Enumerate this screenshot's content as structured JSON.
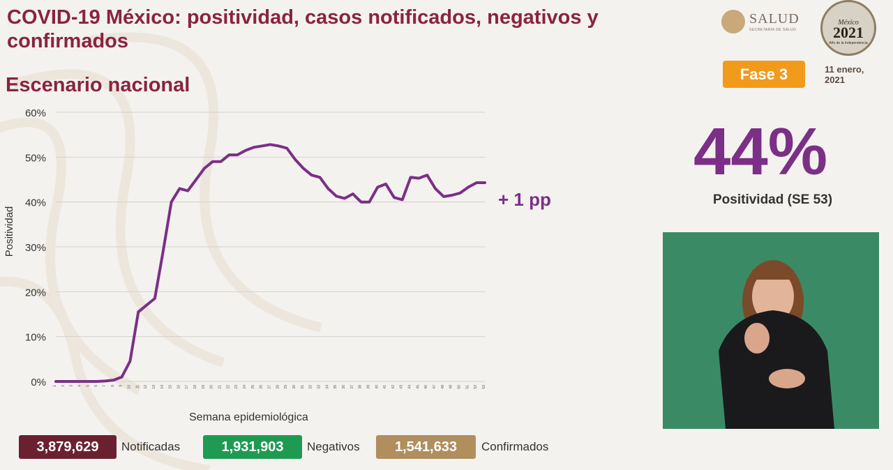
{
  "header": {
    "title": "COVID-19 México: positividad, casos notificados, negativos y confirmados",
    "subtitle": "Escenario nacional"
  },
  "logos": {
    "salud_text": "SALUD",
    "salud_sub": "SECRETARÍA DE SALUD",
    "seal_mexico": "México",
    "seal_year": "2021",
    "seal_sub": "Año de la Independencia"
  },
  "status": {
    "fase": "Fase 3",
    "date_line1": "11 enero,",
    "date_line2": "2021"
  },
  "kpi": {
    "value": "44%",
    "label": "Positividad (SE 53)",
    "change": "+ 1 pp"
  },
  "chart_data": {
    "type": "line",
    "xlabel": "Semana epidemiológica",
    "ylabel": "Positividad",
    "y_ticks": [
      "0%",
      "10%",
      "20%",
      "30%",
      "40%",
      "50%",
      "60%"
    ],
    "ylim": [
      0,
      60
    ],
    "grid": true,
    "x": [
      1,
      2,
      3,
      4,
      5,
      6,
      7,
      8,
      9,
      10,
      11,
      12,
      13,
      14,
      15,
      16,
      17,
      18,
      19,
      20,
      21,
      22,
      23,
      24,
      25,
      26,
      27,
      28,
      29,
      30,
      31,
      32,
      33,
      34,
      35,
      36,
      37,
      38,
      39,
      40,
      41,
      42,
      43,
      44,
      45,
      46,
      47,
      48,
      49,
      50,
      51,
      52,
      53
    ],
    "series": [
      {
        "color": "#7b2f86",
        "values": [
          0,
          0,
          0,
          0,
          0,
          0,
          0.1,
          0.3,
          1,
          4.5,
          15.5,
          17,
          18.5,
          29,
          40,
          43,
          42.5,
          45,
          47.5,
          49,
          49,
          50.5,
          50.5,
          51.5,
          52.2,
          52.5,
          52.8,
          52.5,
          52,
          49.5,
          47.5,
          46,
          45.5,
          43,
          41.3,
          40.8,
          41.8,
          40,
          40,
          43.3,
          44,
          41,
          40.5,
          45.5,
          45.3,
          46,
          43,
          41.2,
          41.5,
          42,
          43.3,
          44.3,
          44.3
        ]
      }
    ],
    "color": "#7b2f86"
  },
  "footer": {
    "notificadas_value": "3,879,629",
    "notificadas_label": "Notificadas",
    "negativos_value": "1,931,903",
    "negativos_label": "Negativos",
    "confirmados_value": "1,541,633",
    "confirmados_label": "Confirmados",
    "colors": {
      "notificadas": "#6b2030",
      "negativos": "#1e9a52",
      "confirmados": "#b08e5e"
    }
  }
}
